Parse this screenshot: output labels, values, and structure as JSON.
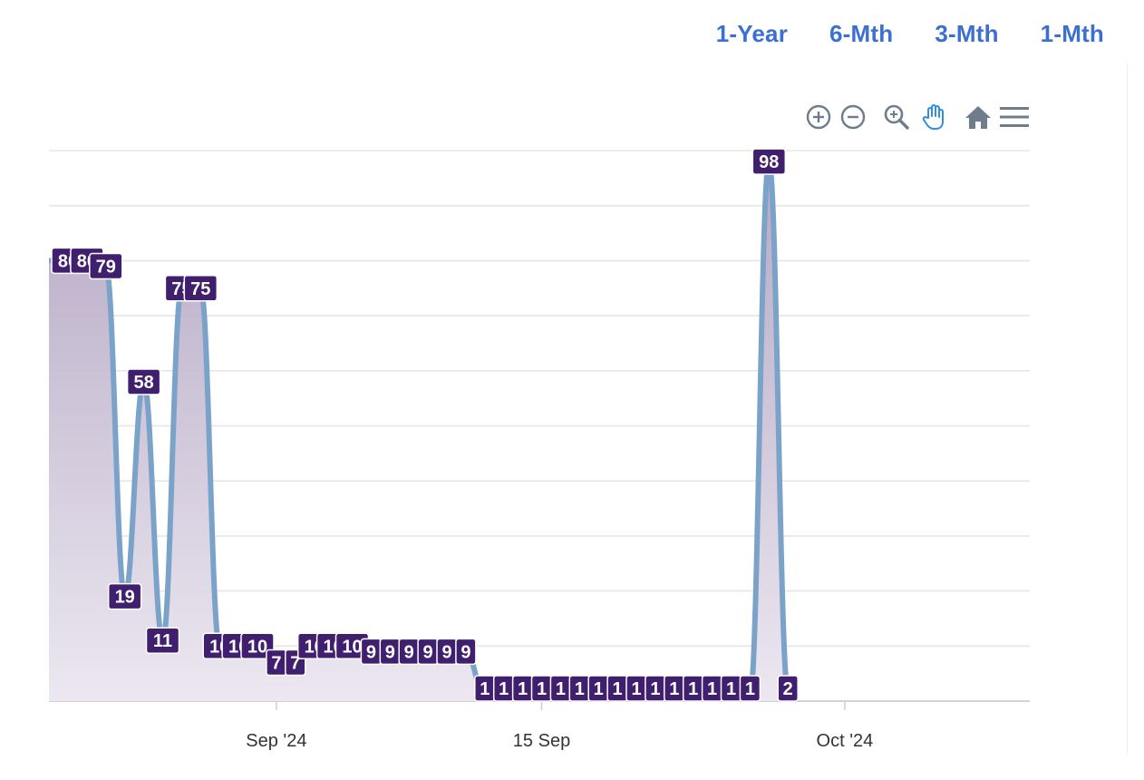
{
  "range_tabs": [
    "1-Year",
    "6-Mth",
    "3-Mth",
    "1-Mth"
  ],
  "toolbar": {
    "icons": [
      "zoom-in-icon",
      "zoom-out-icon",
      "zoom-selection-icon",
      "pan-hand-icon",
      "home-reset-icon",
      "menu-icon"
    ],
    "active": "pan-hand-icon"
  },
  "colors": {
    "tab": "#3b6fd1",
    "line": "#7ba3c9",
    "area_top": "#b2a5c1",
    "area_bottom": "#ebe6f0",
    "label_bg": "#3f1f6e",
    "toolbar_icon": "#6e7c8c",
    "toolbar_active": "#2f8fe0"
  },
  "chart_data": {
    "type": "area",
    "title": "",
    "xlabel": "",
    "ylabel": "",
    "x_ticks": [
      "Sep '24",
      "15 Sep",
      "Oct '24"
    ],
    "ylim": [
      0,
      100
    ],
    "grid": true,
    "data_labels": true,
    "series": [
      {
        "points": [
          [
            "2024-08-21",
            80
          ],
          [
            "2024-08-22",
            80
          ],
          [
            "2024-08-23",
            79
          ],
          [
            "2024-08-24",
            19
          ],
          [
            "2024-08-25",
            58
          ],
          [
            "2024-08-26",
            11
          ],
          [
            "2024-08-27",
            75
          ],
          [
            "2024-08-28",
            75
          ],
          [
            "2024-08-29",
            10
          ],
          [
            "2024-08-30",
            10
          ],
          [
            "2024-08-31",
            10
          ],
          [
            "2024-09-01",
            7
          ],
          [
            "2024-09-02",
            7
          ],
          [
            "2024-09-03",
            10
          ],
          [
            "2024-09-04",
            10
          ],
          [
            "2024-09-05",
            10
          ],
          [
            "2024-09-06",
            9
          ],
          [
            "2024-09-07",
            9
          ],
          [
            "2024-09-08",
            9
          ],
          [
            "2024-09-09",
            9
          ],
          [
            "2024-09-10",
            9
          ],
          [
            "2024-09-11",
            9
          ],
          [
            "2024-09-12",
            1
          ],
          [
            "2024-09-13",
            1
          ],
          [
            "2024-09-14",
            1
          ],
          [
            "2024-09-15",
            1
          ],
          [
            "2024-09-16",
            1
          ],
          [
            "2024-09-17",
            1
          ],
          [
            "2024-09-18",
            1
          ],
          [
            "2024-09-19",
            1
          ],
          [
            "2024-09-20",
            1
          ],
          [
            "2024-09-21",
            1
          ],
          [
            "2024-09-22",
            1
          ],
          [
            "2024-09-23",
            1
          ],
          [
            "2024-09-24",
            1
          ],
          [
            "2024-09-25",
            1
          ],
          [
            "2024-09-26",
            1
          ],
          [
            "2024-09-27",
            98
          ],
          [
            "2024-09-28",
            2
          ]
        ]
      }
    ]
  }
}
